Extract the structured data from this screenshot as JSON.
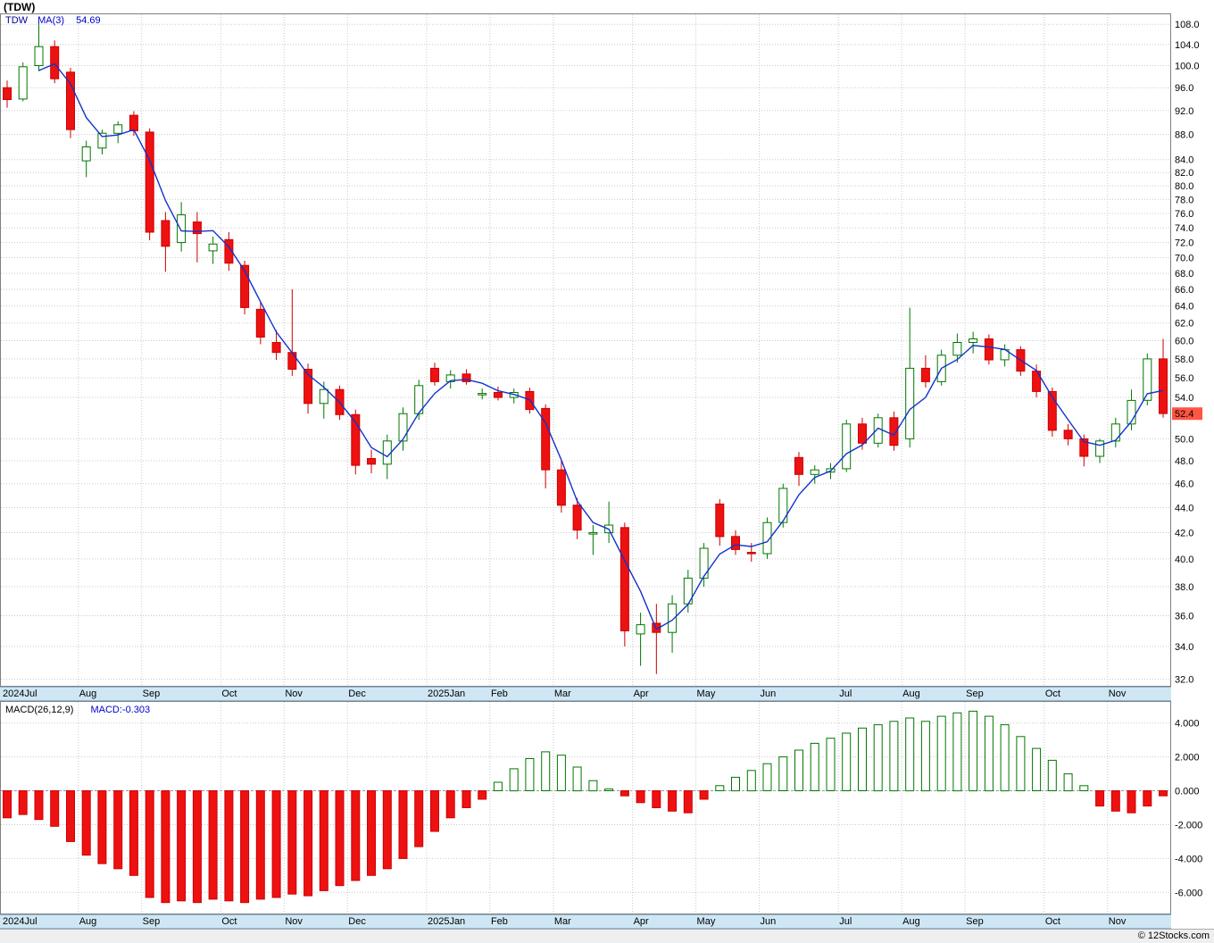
{
  "meta": {
    "symbol_title": "(TDW)",
    "legend": {
      "symbol": "TDW",
      "ma_label": "MA(3)",
      "ma_value": "54.69"
    },
    "macd_legend": {
      "label": "MACD(26,12,9)",
      "value_label": "MACD:-0.303"
    },
    "current_price": "52.4",
    "footer": "© 12Stocks.com"
  },
  "colors": {
    "up": "#007700",
    "down": "#ee1111",
    "down_border": "#cc0000",
    "ma": "#1133cc",
    "grid": "#c9c9c9",
    "zero": "#999999",
    "border": "#808080",
    "axis_text": "#000000",
    "tag_bg": "#ff5544",
    "band_bg": "#cfe7f5",
    "legend_blue": "#0000cc"
  },
  "chart_data": [
    {
      "type": "candlestick",
      "title": "(TDW)",
      "timeframe": "weekly",
      "y_scale": "log",
      "grid": true,
      "last_price": 52.4,
      "overlays": [
        {
          "name": "MA(3)",
          "kind": "sma",
          "window": 3,
          "last_value": 54.69
        }
      ],
      "x_month_labels": [
        {
          "label": "2024Jul",
          "index": 0
        },
        {
          "label": "Aug",
          "index": 5
        },
        {
          "label": "Sep",
          "index": 9
        },
        {
          "label": "Oct",
          "index": 14
        },
        {
          "label": "Nov",
          "index": 18
        },
        {
          "label": "Dec",
          "index": 22
        },
        {
          "label": "2025Jan",
          "index": 27
        },
        {
          "label": "Feb",
          "index": 31
        },
        {
          "label": "Mar",
          "index": 35
        },
        {
          "label": "Apr",
          "index": 40
        },
        {
          "label": "May",
          "index": 44
        },
        {
          "label": "Jun",
          "index": 48
        },
        {
          "label": "Jul",
          "index": 53
        },
        {
          "label": "Aug",
          "index": 57
        },
        {
          "label": "Sep",
          "index": 61
        },
        {
          "label": "Oct",
          "index": 66
        },
        {
          "label": "Nov",
          "index": 70
        }
      ],
      "y_axis": {
        "ticks": [
          108,
          104,
          100,
          96,
          92,
          88,
          84,
          82,
          80,
          78,
          76,
          74,
          72,
          70,
          68,
          66,
          64,
          62,
          60,
          58,
          56,
          54,
          50,
          48,
          46,
          44,
          42,
          40,
          38,
          36,
          34,
          32
        ],
        "range": [
          31.55,
          110.2
        ]
      },
      "ohlc": [
        [
          96.0,
          97.3,
          92.5,
          93.9
        ],
        [
          94.0,
          100.6,
          93.6,
          99.8
        ],
        [
          100.0,
          108.6,
          99.0,
          103.6
        ],
        [
          103.6,
          104.8,
          96.8,
          97.6
        ],
        [
          98.8,
          99.6,
          87.4,
          88.8
        ],
        [
          83.8,
          87.0,
          81.3,
          86.0
        ],
        [
          85.8,
          88.8,
          84.8,
          88.2
        ],
        [
          88.2,
          90.2,
          86.6,
          89.6
        ],
        [
          91.2,
          91.9,
          87.8,
          88.6
        ],
        [
          88.4,
          89.0,
          72.3,
          73.4
        ],
        [
          75.0,
          76.2,
          68.2,
          71.5
        ],
        [
          72.0,
          77.6,
          70.8,
          75.8
        ],
        [
          74.8,
          76.2,
          69.4,
          73.2
        ],
        [
          70.9,
          72.8,
          69.2,
          71.8
        ],
        [
          72.4,
          73.4,
          68.3,
          69.3
        ],
        [
          69.0,
          69.6,
          63.0,
          63.8
        ],
        [
          63.6,
          64.4,
          59.6,
          60.4
        ],
        [
          59.8,
          61.2,
          57.9,
          58.7
        ],
        [
          58.7,
          66.0,
          56.2,
          56.9
        ],
        [
          56.9,
          57.5,
          52.4,
          53.4
        ],
        [
          53.4,
          55.6,
          51.9,
          54.8
        ],
        [
          54.8,
          55.2,
          51.8,
          52.3
        ],
        [
          52.3,
          52.8,
          46.8,
          47.6
        ],
        [
          48.2,
          49.0,
          46.9,
          47.7
        ],
        [
          47.7,
          50.4,
          46.4,
          49.8
        ],
        [
          49.8,
          53.0,
          48.9,
          52.4
        ],
        [
          52.4,
          55.8,
          51.8,
          55.2
        ],
        [
          57.0,
          57.6,
          55.2,
          55.6
        ],
        [
          55.6,
          56.8,
          54.9,
          56.3
        ],
        [
          56.4,
          56.9,
          55.3,
          55.6
        ],
        [
          54.3,
          54.9,
          53.8,
          54.4
        ],
        [
          54.5,
          55.1,
          53.7,
          54.0
        ],
        [
          54.0,
          54.9,
          53.4,
          54.5
        ],
        [
          54.6,
          55.0,
          52.4,
          52.8
        ],
        [
          52.9,
          53.3,
          45.6,
          47.2
        ],
        [
          47.2,
          48.0,
          43.6,
          44.2
        ],
        [
          44.2,
          44.8,
          41.5,
          42.2
        ],
        [
          41.9,
          42.6,
          40.3,
          42.0
        ],
        [
          42.0,
          44.5,
          41.2,
          42.6
        ],
        [
          42.4,
          42.8,
          34.0,
          35.0
        ],
        [
          34.8,
          36.2,
          32.8,
          35.4
        ],
        [
          35.5,
          36.8,
          32.3,
          34.9
        ],
        [
          34.9,
          37.4,
          33.6,
          36.8
        ],
        [
          36.8,
          39.2,
          36.2,
          38.6
        ],
        [
          38.6,
          41.2,
          38.0,
          40.8
        ],
        [
          44.3,
          44.7,
          41.0,
          41.7
        ],
        [
          41.7,
          42.2,
          40.3,
          40.7
        ],
        [
          40.5,
          41.2,
          39.8,
          40.4
        ],
        [
          40.4,
          43.2,
          40.0,
          42.8
        ],
        [
          42.8,
          46.0,
          42.4,
          45.6
        ],
        [
          48.3,
          48.8,
          45.8,
          46.8
        ],
        [
          46.8,
          47.6,
          46.0,
          47.2
        ],
        [
          47.0,
          47.8,
          46.4,
          47.3
        ],
        [
          47.3,
          51.8,
          47.0,
          51.4
        ],
        [
          51.4,
          52.0,
          49.0,
          49.6
        ],
        [
          49.6,
          52.4,
          49.2,
          52.0
        ],
        [
          52.0,
          52.6,
          48.9,
          49.4
        ],
        [
          50.0,
          63.8,
          49.2,
          57.0
        ],
        [
          57.0,
          58.4,
          55.0,
          55.6
        ],
        [
          55.6,
          59.0,
          55.2,
          58.4
        ],
        [
          58.4,
          60.8,
          57.6,
          59.8
        ],
        [
          59.8,
          61.0,
          58.6,
          60.2
        ],
        [
          60.2,
          60.7,
          57.4,
          57.9
        ],
        [
          57.9,
          59.6,
          57.2,
          59.0
        ],
        [
          59.0,
          59.4,
          56.2,
          56.7
        ],
        [
          56.7,
          57.4,
          54.0,
          54.6
        ],
        [
          54.6,
          55.0,
          50.2,
          50.8
        ],
        [
          50.8,
          51.4,
          49.4,
          50.0
        ],
        [
          50.0,
          50.4,
          47.5,
          48.4
        ],
        [
          48.4,
          50.0,
          47.8,
          49.8
        ],
        [
          49.8,
          52.0,
          49.2,
          51.4
        ],
        [
          51.4,
          54.8,
          50.8,
          53.7
        ],
        [
          53.7,
          58.6,
          53.2,
          58.0
        ],
        [
          58.0,
          60.2,
          52.0,
          52.4
        ]
      ]
    },
    {
      "type": "bar",
      "title": "MACD(26,12,9)",
      "last_value": -0.303,
      "y_axis": {
        "ticks": [
          4,
          2,
          0,
          -2,
          -4,
          -6
        ],
        "range": [
          -7.3,
          5.3
        ]
      },
      "values": [
        -1.6,
        -1.4,
        -1.7,
        -2.1,
        -3.0,
        -3.8,
        -4.3,
        -4.6,
        -5.0,
        -6.3,
        -6.6,
        -6.5,
        -6.6,
        -6.4,
        -6.5,
        -6.6,
        -6.4,
        -6.3,
        -6.1,
        -6.2,
        -5.9,
        -5.6,
        -5.3,
        -5.0,
        -4.6,
        -4.0,
        -3.3,
        -2.4,
        -1.6,
        -1.0,
        -0.5,
        0.5,
        1.3,
        1.9,
        2.3,
        2.1,
        1.4,
        0.6,
        0.1,
        -0.3,
        -0.7,
        -1.0,
        -1.2,
        -1.3,
        -0.5,
        0.3,
        0.8,
        1.2,
        1.6,
        2.0,
        2.4,
        2.8,
        3.1,
        3.4,
        3.7,
        3.9,
        4.1,
        4.3,
        4.1,
        4.4,
        4.6,
        4.7,
        4.4,
        3.9,
        3.2,
        2.5,
        1.8,
        1.0,
        0.3,
        -0.9,
        -1.2,
        -1.3,
        -0.9,
        -0.303
      ]
    }
  ]
}
